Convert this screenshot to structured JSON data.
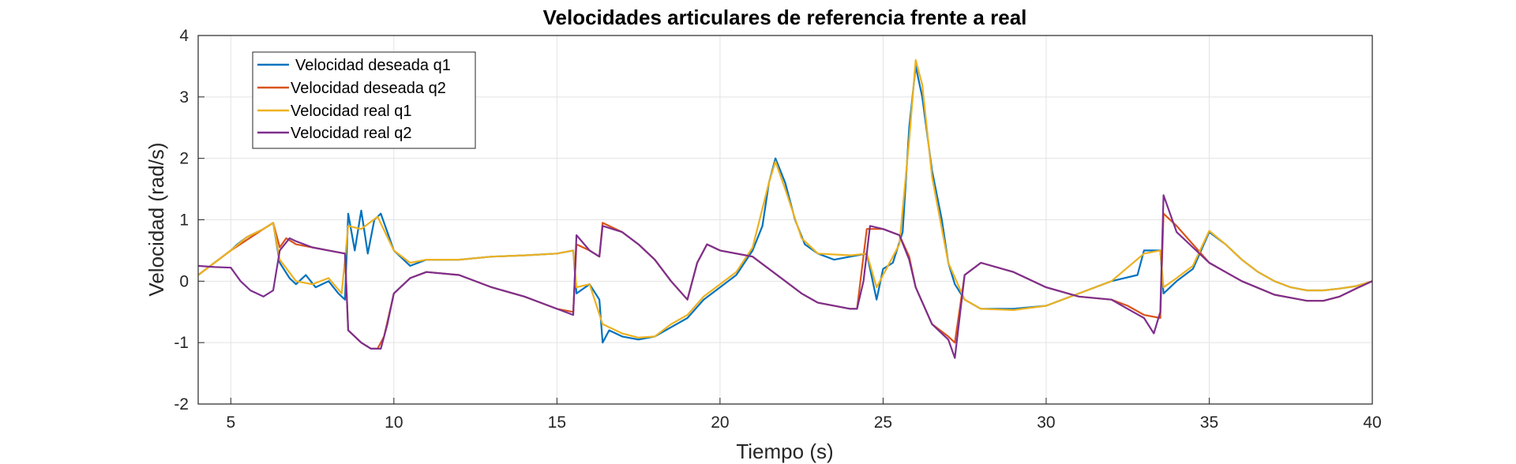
{
  "chart_data": {
    "type": "line",
    "title": "Velocidades articulares de referencia frente a real",
    "xlabel": "Tiempo (s)",
    "ylabel": "Velocidad (rad/s)",
    "xlim": [
      4,
      40
    ],
    "ylim": [
      -2,
      4
    ],
    "xticks": [
      5,
      10,
      15,
      20,
      25,
      30,
      35,
      40
    ],
    "yticks": [
      -2,
      -1,
      0,
      1,
      2,
      3,
      4
    ],
    "grid": true,
    "legend_position": "top-left",
    "series": [
      {
        "name": "Velocidad deseada q1",
        "color": "#0072BD",
        "points": [
          [
            4,
            0.1
          ],
          [
            5,
            0.5
          ],
          [
            5.2,
            0.6
          ],
          [
            5.5,
            0.72
          ],
          [
            6,
            0.85
          ],
          [
            6.3,
            0.95
          ],
          [
            6.5,
            0.3
          ],
          [
            6.8,
            0.05
          ],
          [
            7,
            -0.05
          ],
          [
            7.3,
            0.1
          ],
          [
            7.6,
            -0.1
          ],
          [
            8,
            0.0
          ],
          [
            8.3,
            -0.2
          ],
          [
            8.5,
            -0.3
          ],
          [
            8.6,
            1.1
          ],
          [
            8.8,
            0.5
          ],
          [
            9,
            1.15
          ],
          [
            9.2,
            0.45
          ],
          [
            9.4,
            1.0
          ],
          [
            9.6,
            1.1
          ],
          [
            10,
            0.5
          ],
          [
            10.5,
            0.25
          ],
          [
            11,
            0.35
          ],
          [
            12,
            0.35
          ],
          [
            13,
            0.4
          ],
          [
            14,
            0.42
          ],
          [
            15,
            0.45
          ],
          [
            15.5,
            0.5
          ],
          [
            15.6,
            -0.2
          ],
          [
            16,
            -0.05
          ],
          [
            16.3,
            -0.3
          ],
          [
            16.4,
            -1.0
          ],
          [
            16.6,
            -0.8
          ],
          [
            17,
            -0.9
          ],
          [
            17.5,
            -0.95
          ],
          [
            18,
            -0.9
          ],
          [
            18.5,
            -0.75
          ],
          [
            19,
            -0.6
          ],
          [
            19.5,
            -0.3
          ],
          [
            20,
            -0.1
          ],
          [
            20.5,
            0.1
          ],
          [
            21,
            0.5
          ],
          [
            21.3,
            0.9
          ],
          [
            21.5,
            1.6
          ],
          [
            21.7,
            2.0
          ],
          [
            22,
            1.6
          ],
          [
            22.3,
            1.0
          ],
          [
            22.6,
            0.6
          ],
          [
            23,
            0.45
          ],
          [
            23.5,
            0.35
          ],
          [
            24,
            0.4
          ],
          [
            24.5,
            0.45
          ],
          [
            24.8,
            -0.3
          ],
          [
            25,
            0.2
          ],
          [
            25.3,
            0.3
          ],
          [
            25.6,
            0.8
          ],
          [
            25.8,
            2.5
          ],
          [
            26,
            3.5
          ],
          [
            26.2,
            3.0
          ],
          [
            26.5,
            1.8
          ],
          [
            26.8,
            1.0
          ],
          [
            27,
            0.3
          ],
          [
            27.2,
            -0.05
          ],
          [
            27.5,
            -0.3
          ],
          [
            28,
            -0.45
          ],
          [
            29,
            -0.45
          ],
          [
            30,
            -0.4
          ],
          [
            31,
            -0.2
          ],
          [
            32,
            0.0
          ],
          [
            32.8,
            0.1
          ],
          [
            33,
            0.5
          ],
          [
            33.5,
            0.5
          ],
          [
            33.6,
            -0.2
          ],
          [
            34,
            0.0
          ],
          [
            34.5,
            0.2
          ],
          [
            35,
            0.8
          ],
          [
            35.5,
            0.6
          ],
          [
            36,
            0.35
          ],
          [
            36.5,
            0.15
          ],
          [
            37,
            0.0
          ],
          [
            37.5,
            -0.1
          ],
          [
            38,
            -0.15
          ],
          [
            38.5,
            -0.15
          ],
          [
            39,
            -0.12
          ],
          [
            39.5,
            -0.08
          ],
          [
            40,
            0.0
          ]
        ]
      },
      {
        "name": "Velocidad deseada q2",
        "color": "#D95319",
        "points": [
          [
            4,
            0.1
          ],
          [
            5,
            0.5
          ],
          [
            6,
            0.85
          ],
          [
            6.3,
            0.95
          ],
          [
            6.5,
            0.55
          ],
          [
            6.7,
            0.7
          ],
          [
            7,
            0.6
          ],
          [
            7.5,
            0.55
          ],
          [
            8,
            0.5
          ],
          [
            8.5,
            0.45
          ],
          [
            8.6,
            -0.8
          ],
          [
            9,
            -1.0
          ],
          [
            9.3,
            -1.1
          ],
          [
            9.5,
            -1.1
          ],
          [
            9.7,
            -0.9
          ],
          [
            10,
            -0.2
          ],
          [
            10.5,
            0.05
          ],
          [
            11,
            0.15
          ],
          [
            12,
            0.1
          ],
          [
            13,
            -0.1
          ],
          [
            14,
            -0.25
          ],
          [
            15,
            -0.45
          ],
          [
            15.5,
            -0.5
          ],
          [
            15.6,
            0.6
          ],
          [
            16,
            0.5
          ],
          [
            16.3,
            0.4
          ],
          [
            16.4,
            0.95
          ],
          [
            17,
            0.8
          ],
          [
            17.5,
            0.6
          ],
          [
            18,
            0.35
          ],
          [
            18.5,
            0.0
          ],
          [
            19,
            -0.3
          ],
          [
            19.3,
            0.3
          ],
          [
            19.6,
            0.6
          ],
          [
            20,
            0.5
          ],
          [
            21,
            0.4
          ],
          [
            22,
            0.0
          ],
          [
            22.5,
            -0.2
          ],
          [
            23,
            -0.35
          ],
          [
            24,
            -0.45
          ],
          [
            24.2,
            -0.45
          ],
          [
            24.5,
            0.85
          ],
          [
            25,
            0.85
          ],
          [
            25.5,
            0.75
          ],
          [
            25.8,
            0.4
          ],
          [
            26,
            -0.1
          ],
          [
            26.5,
            -0.7
          ],
          [
            27,
            -0.9
          ],
          [
            27.2,
            -1.0
          ],
          [
            27.5,
            0.1
          ],
          [
            28,
            0.3
          ],
          [
            29,
            0.15
          ],
          [
            30,
            -0.1
          ],
          [
            31,
            -0.25
          ],
          [
            32,
            -0.3
          ],
          [
            32.5,
            -0.4
          ],
          [
            33,
            -0.55
          ],
          [
            33.5,
            -0.6
          ],
          [
            33.6,
            1.1
          ],
          [
            34,
            0.9
          ],
          [
            34.5,
            0.6
          ],
          [
            35,
            0.3
          ],
          [
            35.5,
            0.15
          ],
          [
            36,
            0.0
          ],
          [
            37,
            -0.22
          ],
          [
            38,
            -0.32
          ],
          [
            38.5,
            -0.32
          ],
          [
            39,
            -0.25
          ],
          [
            39.5,
            -0.12
          ],
          [
            40,
            0.0
          ]
        ]
      },
      {
        "name": "Velocidad real q1",
        "color": "#EDB120",
        "points": [
          [
            4,
            0.1
          ],
          [
            5,
            0.5
          ],
          [
            5.5,
            0.72
          ],
          [
            6,
            0.85
          ],
          [
            6.3,
            0.95
          ],
          [
            6.5,
            0.35
          ],
          [
            7,
            0.0
          ],
          [
            7.5,
            -0.05
          ],
          [
            8,
            0.05
          ],
          [
            8.4,
            -0.2
          ],
          [
            8.6,
            0.9
          ],
          [
            9,
            0.85
          ],
          [
            9.5,
            1.05
          ],
          [
            10,
            0.5
          ],
          [
            10.5,
            0.3
          ],
          [
            11,
            0.35
          ],
          [
            12,
            0.35
          ],
          [
            13,
            0.4
          ],
          [
            14,
            0.42
          ],
          [
            15,
            0.45
          ],
          [
            15.5,
            0.5
          ],
          [
            15.6,
            -0.1
          ],
          [
            16,
            -0.05
          ],
          [
            16.4,
            -0.7
          ],
          [
            17,
            -0.85
          ],
          [
            17.5,
            -0.92
          ],
          [
            18,
            -0.9
          ],
          [
            18.5,
            -0.7
          ],
          [
            19,
            -0.55
          ],
          [
            19.5,
            -0.25
          ],
          [
            20,
            -0.05
          ],
          [
            20.5,
            0.15
          ],
          [
            21,
            0.55
          ],
          [
            21.5,
            1.6
          ],
          [
            21.7,
            1.95
          ],
          [
            22,
            1.5
          ],
          [
            22.5,
            0.7
          ],
          [
            23,
            0.45
          ],
          [
            24,
            0.42
          ],
          [
            24.5,
            0.45
          ],
          [
            24.8,
            -0.1
          ],
          [
            25,
            0.1
          ],
          [
            25.5,
            0.6
          ],
          [
            25.8,
            2.3
          ],
          [
            26,
            3.6
          ],
          [
            26.2,
            3.2
          ],
          [
            26.5,
            1.7
          ],
          [
            27,
            0.3
          ],
          [
            27.5,
            -0.3
          ],
          [
            28,
            -0.45
          ],
          [
            29,
            -0.47
          ],
          [
            30,
            -0.4
          ],
          [
            31,
            -0.2
          ],
          [
            32,
            0.0
          ],
          [
            33,
            0.45
          ],
          [
            33.5,
            0.5
          ],
          [
            33.6,
            -0.1
          ],
          [
            34,
            0.05
          ],
          [
            34.5,
            0.25
          ],
          [
            35,
            0.82
          ],
          [
            35.5,
            0.6
          ],
          [
            36,
            0.35
          ],
          [
            36.5,
            0.15
          ],
          [
            37,
            0.0
          ],
          [
            37.5,
            -0.1
          ],
          [
            38,
            -0.15
          ],
          [
            38.5,
            -0.15
          ],
          [
            39,
            -0.12
          ],
          [
            39.5,
            -0.08
          ],
          [
            40,
            0.0
          ]
        ]
      },
      {
        "name": "Velocidad real q2",
        "color": "#7E2F8E",
        "points": [
          [
            4,
            0.25
          ],
          [
            4.5,
            0.23
          ],
          [
            5,
            0.22
          ],
          [
            5.3,
            0.0
          ],
          [
            5.6,
            -0.15
          ],
          [
            6,
            -0.25
          ],
          [
            6.3,
            -0.15
          ],
          [
            6.5,
            0.5
          ],
          [
            6.8,
            0.7
          ],
          [
            7,
            0.65
          ],
          [
            7.5,
            0.55
          ],
          [
            8,
            0.5
          ],
          [
            8.5,
            0.45
          ],
          [
            8.6,
            -0.8
          ],
          [
            9,
            -1.0
          ],
          [
            9.3,
            -1.1
          ],
          [
            9.6,
            -1.1
          ],
          [
            9.8,
            -0.7
          ],
          [
            10,
            -0.2
          ],
          [
            10.5,
            0.05
          ],
          [
            11,
            0.15
          ],
          [
            12,
            0.1
          ],
          [
            13,
            -0.1
          ],
          [
            14,
            -0.25
          ],
          [
            15,
            -0.45
          ],
          [
            15.5,
            -0.55
          ],
          [
            15.6,
            0.75
          ],
          [
            16,
            0.5
          ],
          [
            16.3,
            0.4
          ],
          [
            16.4,
            0.9
          ],
          [
            17,
            0.8
          ],
          [
            17.5,
            0.6
          ],
          [
            18,
            0.35
          ],
          [
            18.5,
            0.0
          ],
          [
            19,
            -0.3
          ],
          [
            19.3,
            0.3
          ],
          [
            19.6,
            0.6
          ],
          [
            20,
            0.5
          ],
          [
            21,
            0.4
          ],
          [
            22,
            0.0
          ],
          [
            22.5,
            -0.2
          ],
          [
            23,
            -0.35
          ],
          [
            24,
            -0.45
          ],
          [
            24.2,
            -0.45
          ],
          [
            24.4,
            0.0
          ],
          [
            24.6,
            0.9
          ],
          [
            25,
            0.85
          ],
          [
            25.5,
            0.75
          ],
          [
            25.8,
            0.35
          ],
          [
            26,
            -0.1
          ],
          [
            26.5,
            -0.7
          ],
          [
            27,
            -0.95
          ],
          [
            27.2,
            -1.25
          ],
          [
            27.5,
            0.1
          ],
          [
            28,
            0.3
          ],
          [
            29,
            0.15
          ],
          [
            30,
            -0.1
          ],
          [
            31,
            -0.25
          ],
          [
            32,
            -0.3
          ],
          [
            32.5,
            -0.45
          ],
          [
            33,
            -0.6
          ],
          [
            33.3,
            -0.85
          ],
          [
            33.5,
            -0.5
          ],
          [
            33.6,
            1.4
          ],
          [
            34,
            0.8
          ],
          [
            34.5,
            0.55
          ],
          [
            35,
            0.3
          ],
          [
            35.5,
            0.15
          ],
          [
            36,
            0.0
          ],
          [
            37,
            -0.22
          ],
          [
            38,
            -0.32
          ],
          [
            38.5,
            -0.32
          ],
          [
            39,
            -0.25
          ],
          [
            39.5,
            -0.12
          ],
          [
            40,
            0.0
          ]
        ]
      }
    ]
  }
}
